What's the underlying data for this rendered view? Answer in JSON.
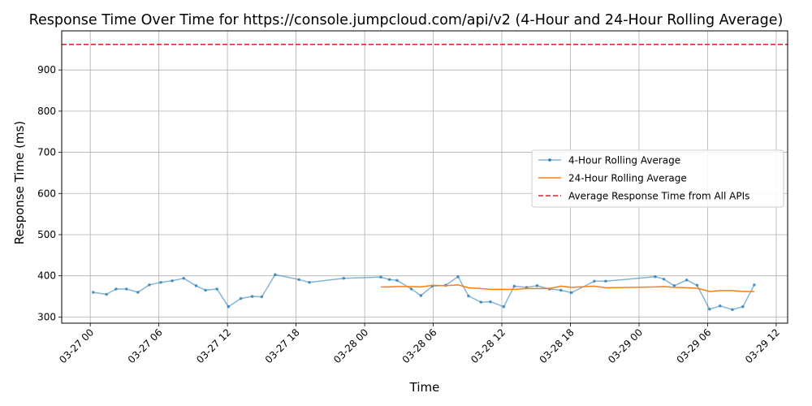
{
  "chart_data": {
    "type": "line",
    "title": "Response Time Over Time for https://console.jumpcloud.com/api/v2 (4-Hour and 24-Hour Rolling Average)",
    "xlabel": "Time",
    "ylabel": "Response Time (ms)",
    "x_axis": "datetime",
    "xlim": [
      "2027-03-26 21:30",
      "2027-03-29 13:00"
    ],
    "ylim": [
      285,
      995
    ],
    "x_ticks": [
      {
        "t": "2027-03-27 00:00",
        "label": "03-27 00"
      },
      {
        "t": "2027-03-27 06:00",
        "label": "03-27 06"
      },
      {
        "t": "2027-03-27 12:00",
        "label": "03-27 12"
      },
      {
        "t": "2027-03-27 18:00",
        "label": "03-27 18"
      },
      {
        "t": "2027-03-28 00:00",
        "label": "03-28 00"
      },
      {
        "t": "2027-03-28 06:00",
        "label": "03-28 06"
      },
      {
        "t": "2027-03-28 12:00",
        "label": "03-28 12"
      },
      {
        "t": "2027-03-28 18:00",
        "label": "03-28 18"
      },
      {
        "t": "2027-03-29 00:00",
        "label": "03-29 00"
      },
      {
        "t": "2027-03-29 06:00",
        "label": "03-29 06"
      },
      {
        "t": "2027-03-29 12:00",
        "label": "03-29 12"
      }
    ],
    "y_ticks": [
      300,
      400,
      500,
      600,
      700,
      800,
      900
    ],
    "grid": true,
    "legend_position": "center-right",
    "series": [
      {
        "name": "4-Hour Rolling Average",
        "color": "#1f77b4",
        "style": "line-with-markers",
        "points": [
          {
            "t": "2027-03-27 00:15",
            "y": 360
          },
          {
            "t": "2027-03-27 01:25",
            "y": 355
          },
          {
            "t": "2027-03-27 02:15",
            "y": 368
          },
          {
            "t": "2027-03-27 03:10",
            "y": 368
          },
          {
            "t": "2027-03-27 04:10",
            "y": 360
          },
          {
            "t": "2027-03-27 05:10",
            "y": 378
          },
          {
            "t": "2027-03-27 06:10",
            "y": 384
          },
          {
            "t": "2027-03-27 07:10",
            "y": 388
          },
          {
            "t": "2027-03-27 08:10",
            "y": 394
          },
          {
            "t": "2027-03-27 09:15",
            "y": 376
          },
          {
            "t": "2027-03-27 10:05",
            "y": 365
          },
          {
            "t": "2027-03-27 11:05",
            "y": 368
          },
          {
            "t": "2027-03-27 12:05",
            "y": 325
          },
          {
            "t": "2027-03-27 13:10",
            "y": 345
          },
          {
            "t": "2027-03-27 14:10",
            "y": 350
          },
          {
            "t": "2027-03-27 15:00",
            "y": 349
          },
          {
            "t": "2027-03-27 16:10",
            "y": 403
          },
          {
            "t": "2027-03-27 18:15",
            "y": 391
          },
          {
            "t": "2027-03-27 19:10",
            "y": 384
          },
          {
            "t": "2027-03-27 22:10",
            "y": 394
          },
          {
            "t": "2027-03-28 01:25",
            "y": 397
          },
          {
            "t": "2027-03-28 02:10",
            "y": 391
          },
          {
            "t": "2027-03-28 02:50",
            "y": 389
          },
          {
            "t": "2027-03-28 04:05",
            "y": 368
          },
          {
            "t": "2027-03-28 04:55",
            "y": 352
          },
          {
            "t": "2027-03-28 05:55",
            "y": 375
          },
          {
            "t": "2027-03-28 07:05",
            "y": 377
          },
          {
            "t": "2027-03-28 08:10",
            "y": 398
          },
          {
            "t": "2027-03-28 09:05",
            "y": 351
          },
          {
            "t": "2027-03-28 10:10",
            "y": 336
          },
          {
            "t": "2027-03-28 11:00",
            "y": 337
          },
          {
            "t": "2027-03-28 12:10",
            "y": 325
          },
          {
            "t": "2027-03-28 13:05",
            "y": 375
          },
          {
            "t": "2027-03-28 14:10",
            "y": 372
          },
          {
            "t": "2027-03-28 15:05",
            "y": 376
          },
          {
            "t": "2027-03-28 16:10",
            "y": 368
          },
          {
            "t": "2027-03-28 17:10",
            "y": 365
          },
          {
            "t": "2027-03-28 18:05",
            "y": 359
          },
          {
            "t": "2027-03-28 20:05",
            "y": 387
          },
          {
            "t": "2027-03-28 21:05",
            "y": 387
          },
          {
            "t": "2027-03-29 01:25",
            "y": 398
          },
          {
            "t": "2027-03-29 02:10",
            "y": 392
          },
          {
            "t": "2027-03-29 03:05",
            "y": 376
          },
          {
            "t": "2027-03-29 04:10",
            "y": 390
          },
          {
            "t": "2027-03-29 05:05",
            "y": 377
          },
          {
            "t": "2027-03-29 06:10",
            "y": 319
          },
          {
            "t": "2027-03-29 07:05",
            "y": 327
          },
          {
            "t": "2027-03-29 08:10",
            "y": 318
          },
          {
            "t": "2027-03-29 09:05",
            "y": 325
          },
          {
            "t": "2027-03-29 10:05",
            "y": 378
          }
        ]
      },
      {
        "name": "24-Hour Rolling Average",
        "color": "#ff7f0e",
        "style": "line",
        "points": [
          {
            "t": "2027-03-28 01:25",
            "y": 373
          },
          {
            "t": "2027-03-28 02:10",
            "y": 373
          },
          {
            "t": "2027-03-28 02:50",
            "y": 374
          },
          {
            "t": "2027-03-28 04:05",
            "y": 374
          },
          {
            "t": "2027-03-28 04:55",
            "y": 373
          },
          {
            "t": "2027-03-28 05:55",
            "y": 377
          },
          {
            "t": "2027-03-28 07:05",
            "y": 376
          },
          {
            "t": "2027-03-28 08:10",
            "y": 378
          },
          {
            "t": "2027-03-28 09:05",
            "y": 371
          },
          {
            "t": "2027-03-28 10:10",
            "y": 369
          },
          {
            "t": "2027-03-28 11:00",
            "y": 367
          },
          {
            "t": "2027-03-28 12:10",
            "y": 367
          },
          {
            "t": "2027-03-28 13:05",
            "y": 367
          },
          {
            "t": "2027-03-28 14:10",
            "y": 369
          },
          {
            "t": "2027-03-28 15:05",
            "y": 369
          },
          {
            "t": "2027-03-28 16:10",
            "y": 369
          },
          {
            "t": "2027-03-28 17:10",
            "y": 375
          },
          {
            "t": "2027-03-28 18:05",
            "y": 372
          },
          {
            "t": "2027-03-28 20:05",
            "y": 375
          },
          {
            "t": "2027-03-28 21:05",
            "y": 371
          },
          {
            "t": "2027-03-29 01:25",
            "y": 373
          },
          {
            "t": "2027-03-29 02:10",
            "y": 374
          },
          {
            "t": "2027-03-29 03:05",
            "y": 372
          },
          {
            "t": "2027-03-29 04:10",
            "y": 371
          },
          {
            "t": "2027-03-29 05:05",
            "y": 370
          },
          {
            "t": "2027-03-29 06:10",
            "y": 362
          },
          {
            "t": "2027-03-29 07:05",
            "y": 364
          },
          {
            "t": "2027-03-29 08:10",
            "y": 364
          },
          {
            "t": "2027-03-29 09:05",
            "y": 362
          },
          {
            "t": "2027-03-29 10:05",
            "y": 362
          }
        ]
      }
    ],
    "reference_lines": [
      {
        "name": "Average Response Time from All APIs",
        "y": 962,
        "color": "#d62728",
        "style": "dashed"
      }
    ]
  }
}
